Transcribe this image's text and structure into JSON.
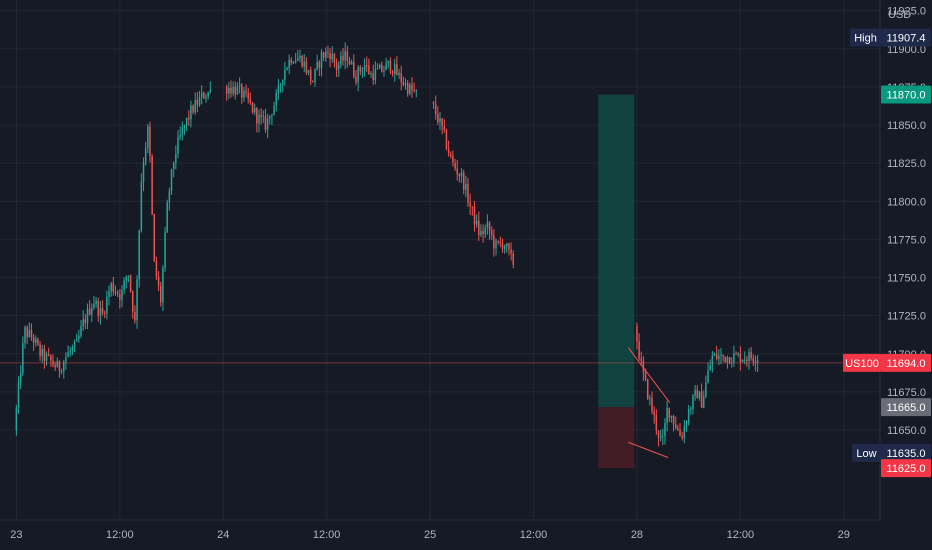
{
  "chart_data": {
    "type": "candlestick",
    "currency": "USD",
    "symbol": "US100",
    "last_price": 11694.0,
    "high": 11907.4,
    "low": 11635.0,
    "high_label": "High",
    "low_label": "Low",
    "high_text": "11907.4",
    "low_text": "11635.0",
    "last_text": "11694.0",
    "ylim": [
      11591,
      11932
    ],
    "y_ticks": [
      11650,
      11675,
      11700,
      11725,
      11750,
      11775,
      11800,
      11825,
      11850,
      11875,
      11900,
      11925
    ],
    "y_tick_labels": [
      "11650.0",
      "11675.0",
      "11700.0",
      "11725.0",
      "11750.0",
      "11775.0",
      "11800.0",
      "11825.0",
      "11850.0",
      "11875.0",
      "11900.0",
      "11925.0"
    ],
    "x_ticks": [
      {
        "label": "23",
        "t": 0
      },
      {
        "label": "12:00",
        "t": 12
      },
      {
        "label": "24",
        "t": 24
      },
      {
        "label": "12:00",
        "t": 36
      },
      {
        "label": "25",
        "t": 48
      },
      {
        "label": "12:00",
        "t": 60
      },
      {
        "label": "28",
        "t": 72
      },
      {
        "label": "12:00",
        "t": 84
      },
      {
        "label": "29",
        "t": 96
      }
    ],
    "x_range": [
      -1.9,
      100.2
    ],
    "position": {
      "type": "long",
      "t_start": 67.5,
      "t_end": 71.7,
      "entry": 11665.0,
      "target": 11870.0,
      "stop": 11625.0,
      "entry_text": "11665.0",
      "target_text": "11870.0",
      "stop_text": "11625.0"
    },
    "wedge": {
      "upper": [
        [
          71.0,
          11704
        ],
        [
          75.8,
          11668
        ]
      ],
      "lower": [
        [
          71.0,
          11642
        ],
        [
          75.6,
          11632
        ]
      ]
    },
    "path_days": [
      {
        "t0": 0,
        "t1": 22.6,
        "points": [
          [
            0,
            11650
          ],
          [
            0.6,
            11682
          ],
          [
            1.2,
            11715
          ],
          [
            2.2,
            11710
          ],
          [
            3.0,
            11700
          ],
          [
            4.2,
            11695
          ],
          [
            5.2,
            11690
          ],
          [
            6.2,
            11700
          ],
          [
            7.2,
            11705
          ],
          [
            8.0,
            11720
          ],
          [
            9.2,
            11735
          ],
          [
            10.2,
            11725
          ],
          [
            11.2,
            11745
          ],
          [
            12.4,
            11738
          ],
          [
            13.2,
            11755
          ],
          [
            14.0,
            11720
          ],
          [
            14.8,
            11820
          ],
          [
            15.6,
            11850
          ],
          [
            16.2,
            11760
          ],
          [
            17.0,
            11735
          ],
          [
            17.8,
            11800
          ],
          [
            18.6,
            11830
          ],
          [
            19.4,
            11845
          ],
          [
            20.6,
            11860
          ],
          [
            22.0,
            11870
          ],
          [
            22.6,
            11872
          ]
        ]
      },
      {
        "t0": 24.4,
        "t1": 46.6,
        "points": [
          [
            24.4,
            11875
          ],
          [
            26.0,
            11873
          ],
          [
            27.2,
            11865
          ],
          [
            28.2,
            11855
          ],
          [
            29.2,
            11850
          ],
          [
            30.6,
            11870
          ],
          [
            31.2,
            11885
          ],
          [
            32.2,
            11895
          ],
          [
            33.4,
            11893
          ],
          [
            34.6,
            11878
          ],
          [
            35.6,
            11895
          ],
          [
            36.6,
            11898
          ],
          [
            37.4,
            11888
          ],
          [
            38.6,
            11896
          ],
          [
            39.6,
            11882
          ],
          [
            40.6,
            11890
          ],
          [
            41.4,
            11883
          ],
          [
            42.6,
            11886
          ],
          [
            43.6,
            11890
          ],
          [
            44.6,
            11882
          ],
          [
            45.6,
            11875
          ],
          [
            46.6,
            11870
          ]
        ]
      },
      {
        "t0": 48.4,
        "t1": 57.8,
        "points": [
          [
            48.4,
            11865
          ],
          [
            49.6,
            11848
          ],
          [
            50.8,
            11825
          ],
          [
            52.0,
            11815
          ],
          [
            53.0,
            11795
          ],
          [
            54.0,
            11778
          ],
          [
            55.0,
            11783
          ],
          [
            55.8,
            11770
          ],
          [
            56.8,
            11773
          ],
          [
            57.8,
            11760
          ]
        ]
      },
      {
        "t0": 72.0,
        "t1": 86.0,
        "points": [
          [
            72.0,
            11718
          ],
          [
            72.8,
            11690
          ],
          [
            73.6,
            11672
          ],
          [
            74.6,
            11650
          ],
          [
            75.2,
            11640
          ],
          [
            75.8,
            11665
          ],
          [
            76.6,
            11655
          ],
          [
            77.4,
            11645
          ],
          [
            78.2,
            11662
          ],
          [
            79.2,
            11675
          ],
          [
            79.8,
            11668
          ],
          [
            80.6,
            11690
          ],
          [
            81.0,
            11698
          ]
        ]
      }
    ],
    "colors": {
      "background": "#161a25",
      "up": "#26a69a",
      "down": "#ef5350",
      "grid": "#222733",
      "axis_text": "#b2b5be",
      "profit_zone": "#0f4a45",
      "loss_zone": "#4a1f27",
      "high_low_badge": "#1f2a4a",
      "last_price_badge": "#f23645",
      "entry_badge": "#6a6d78",
      "target_badge": "#089981",
      "stop_badge": "#f23645"
    }
  }
}
